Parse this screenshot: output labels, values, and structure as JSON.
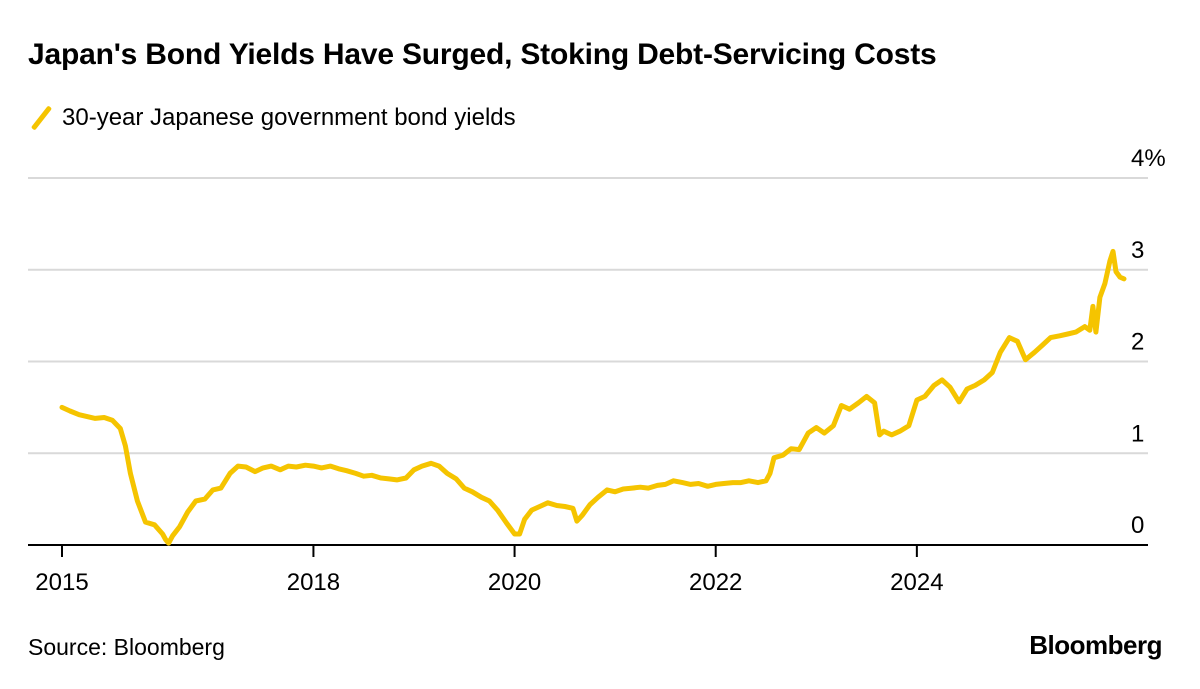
{
  "title": "Japan's Bond Yields Have Surged, Stoking Debt-Servicing Costs",
  "source": "Source: Bloomberg",
  "brand": "Bloomberg",
  "colors": {
    "line": "#f5c400",
    "grid": "#d9d9d9",
    "axis": "#000000"
  },
  "chart_data": {
    "type": "line",
    "title": "Japan's Bond Yields Have Surged, Stoking Debt-Servicing Costs",
    "xlabel": "",
    "ylabel": "",
    "xlim": [
      2015.0,
      2025.95
    ],
    "ylim": [
      0,
      4
    ],
    "y_ticks": [
      {
        "value": 4,
        "label": "4%"
      },
      {
        "value": 3,
        "label": "3"
      },
      {
        "value": 2,
        "label": "2"
      },
      {
        "value": 1,
        "label": "1"
      },
      {
        "value": 0,
        "label": "0"
      }
    ],
    "x_ticks": [
      {
        "value": 2015.0,
        "label": "2015"
      },
      {
        "value": 2017.5,
        "label": "2018"
      },
      {
        "value": 2019.5,
        "label": "2020"
      },
      {
        "value": 2021.5,
        "label": "2022"
      },
      {
        "value": 2023.5,
        "label": "2024"
      }
    ],
    "grid": true,
    "legend_position": "top-left",
    "series": [
      {
        "name": "30-year Japanese government bond yields",
        "color": "#f5c400",
        "points": [
          [
            2015.0,
            1.5
          ],
          [
            2015.08,
            1.46
          ],
          [
            2015.17,
            1.42
          ],
          [
            2015.25,
            1.4
          ],
          [
            2015.33,
            1.38
          ],
          [
            2015.42,
            1.39
          ],
          [
            2015.5,
            1.36
          ],
          [
            2015.58,
            1.27
          ],
          [
            2015.63,
            1.08
          ],
          [
            2015.68,
            0.78
          ],
          [
            2015.75,
            0.48
          ],
          [
            2015.83,
            0.25
          ],
          [
            2015.92,
            0.22
          ],
          [
            2016.0,
            0.12
          ],
          [
            2016.03,
            0.06
          ],
          [
            2016.06,
            0.02
          ],
          [
            2016.1,
            0.1
          ],
          [
            2016.17,
            0.2
          ],
          [
            2016.25,
            0.36
          ],
          [
            2016.33,
            0.48
          ],
          [
            2016.42,
            0.5
          ],
          [
            2016.5,
            0.6
          ],
          [
            2016.58,
            0.62
          ],
          [
            2016.67,
            0.78
          ],
          [
            2016.75,
            0.86
          ],
          [
            2016.83,
            0.85
          ],
          [
            2016.92,
            0.8
          ],
          [
            2017.0,
            0.84
          ],
          [
            2017.08,
            0.86
          ],
          [
            2017.17,
            0.82
          ],
          [
            2017.25,
            0.86
          ],
          [
            2017.33,
            0.85
          ],
          [
            2017.42,
            0.87
          ],
          [
            2017.5,
            0.86
          ],
          [
            2017.58,
            0.84
          ],
          [
            2017.67,
            0.86
          ],
          [
            2017.75,
            0.83
          ],
          [
            2017.83,
            0.81
          ],
          [
            2017.92,
            0.78
          ],
          [
            2018.0,
            0.75
          ],
          [
            2018.08,
            0.76
          ],
          [
            2018.17,
            0.73
          ],
          [
            2018.25,
            0.72
          ],
          [
            2018.33,
            0.71
          ],
          [
            2018.42,
            0.73
          ],
          [
            2018.5,
            0.82
          ],
          [
            2018.58,
            0.86
          ],
          [
            2018.67,
            0.89
          ],
          [
            2018.75,
            0.86
          ],
          [
            2018.83,
            0.78
          ],
          [
            2018.92,
            0.72
          ],
          [
            2019.0,
            0.62
          ],
          [
            2019.08,
            0.58
          ],
          [
            2019.17,
            0.52
          ],
          [
            2019.25,
            0.48
          ],
          [
            2019.33,
            0.38
          ],
          [
            2019.42,
            0.24
          ],
          [
            2019.5,
            0.12
          ],
          [
            2019.55,
            0.12
          ],
          [
            2019.6,
            0.28
          ],
          [
            2019.67,
            0.38
          ],
          [
            2019.75,
            0.42
          ],
          [
            2019.83,
            0.46
          ],
          [
            2019.92,
            0.43
          ],
          [
            2020.0,
            0.42
          ],
          [
            2020.08,
            0.4
          ],
          [
            2020.12,
            0.26
          ],
          [
            2020.17,
            0.32
          ],
          [
            2020.25,
            0.44
          ],
          [
            2020.33,
            0.52
          ],
          [
            2020.42,
            0.6
          ],
          [
            2020.5,
            0.58
          ],
          [
            2020.58,
            0.61
          ],
          [
            2020.67,
            0.62
          ],
          [
            2020.75,
            0.63
          ],
          [
            2020.83,
            0.62
          ],
          [
            2020.92,
            0.65
          ],
          [
            2021.0,
            0.66
          ],
          [
            2021.08,
            0.7
          ],
          [
            2021.17,
            0.68
          ],
          [
            2021.25,
            0.66
          ],
          [
            2021.33,
            0.67
          ],
          [
            2021.42,
            0.64
          ],
          [
            2021.5,
            0.66
          ],
          [
            2021.58,
            0.67
          ],
          [
            2021.67,
            0.68
          ],
          [
            2021.75,
            0.68
          ],
          [
            2021.83,
            0.7
          ],
          [
            2021.92,
            0.68
          ],
          [
            2022.0,
            0.7
          ],
          [
            2022.04,
            0.78
          ],
          [
            2022.08,
            0.95
          ],
          [
            2022.17,
            0.98
          ],
          [
            2022.25,
            1.05
          ],
          [
            2022.33,
            1.04
          ],
          [
            2022.42,
            1.22
          ],
          [
            2022.5,
            1.28
          ],
          [
            2022.58,
            1.22
          ],
          [
            2022.67,
            1.3
          ],
          [
            2022.75,
            1.52
          ],
          [
            2022.83,
            1.48
          ],
          [
            2022.92,
            1.55
          ],
          [
            2023.0,
            1.62
          ],
          [
            2023.08,
            1.55
          ],
          [
            2023.13,
            1.2
          ],
          [
            2023.17,
            1.24
          ],
          [
            2023.25,
            1.2
          ],
          [
            2023.33,
            1.24
          ],
          [
            2023.42,
            1.3
          ],
          [
            2023.5,
            1.58
          ],
          [
            2023.58,
            1.62
          ],
          [
            2023.67,
            1.74
          ],
          [
            2023.75,
            1.8
          ],
          [
            2023.83,
            1.72
          ],
          [
            2023.92,
            1.56
          ],
          [
            2024.0,
            1.7
          ],
          [
            2024.08,
            1.74
          ],
          [
            2024.17,
            1.8
          ],
          [
            2024.25,
            1.88
          ],
          [
            2024.33,
            2.1
          ],
          [
            2024.42,
            2.26
          ],
          [
            2024.5,
            2.22
          ],
          [
            2024.58,
            2.02
          ],
          [
            2024.67,
            2.1
          ],
          [
            2024.75,
            2.18
          ],
          [
            2024.83,
            2.26
          ],
          [
            2024.92,
            2.28
          ],
          [
            2025.0,
            2.3
          ],
          [
            2025.08,
            2.32
          ],
          [
            2025.17,
            2.38
          ],
          [
            2025.22,
            2.34
          ],
          [
            2025.25,
            2.6
          ],
          [
            2025.28,
            2.32
          ],
          [
            2025.32,
            2.7
          ],
          [
            2025.37,
            2.85
          ],
          [
            2025.42,
            3.1
          ],
          [
            2025.45,
            3.2
          ],
          [
            2025.48,
            2.98
          ],
          [
            2025.52,
            2.92
          ],
          [
            2025.56,
            2.9
          ]
        ]
      }
    ]
  }
}
